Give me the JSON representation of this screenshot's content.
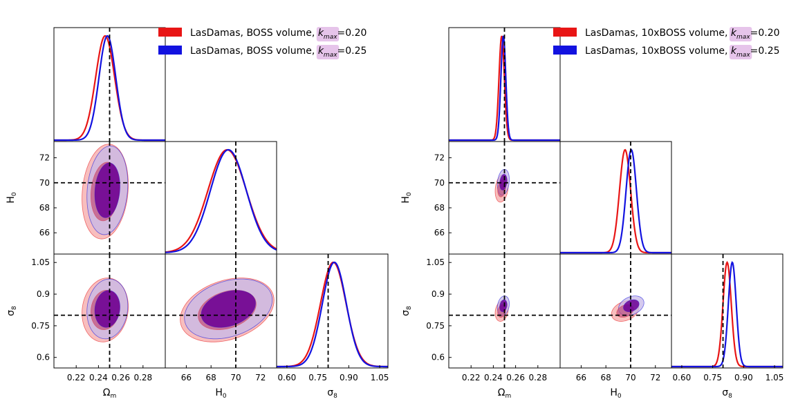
{
  "chart_data": [
    {
      "type": "corner",
      "params": [
        "Om",
        "H0",
        "s8"
      ],
      "axis_labels": {
        "Om": "Ω",
        "H0": "H",
        "s8": "σ"
      },
      "axis_label_subscripts": {
        "Om": "m",
        "H0": "0",
        "s8": "8"
      },
      "ranges": {
        "Om": [
          0.2,
          0.3
        ],
        "H0": [
          64.3,
          73.3
        ],
        "s8": [
          0.55,
          1.09
        ]
      },
      "ticks": {
        "Om": {
          "values": [
            0.22,
            0.24,
            0.26,
            0.28
          ],
          "labels": [
            "0.22",
            "0.24",
            "0.26",
            "0.28"
          ]
        },
        "H0": {
          "values": [
            66,
            68,
            70,
            72
          ],
          "labels": [
            "66",
            "68",
            "70",
            "72"
          ]
        },
        "s8": {
          "values": [
            0.6,
            0.75,
            0.9,
            1.05
          ],
          "labels": [
            "0.60",
            "0.75",
            "0.90",
            "1.05"
          ]
        }
      },
      "y_ticks": {
        "H0": {
          "values": [
            66,
            68,
            70,
            72
          ],
          "labels": [
            "66",
            "68",
            "70",
            "72"
          ]
        },
        "s8": {
          "values": [
            0.6,
            0.75,
            0.9,
            1.05
          ],
          "labels": [
            "0.6",
            "0.75",
            "0.9",
            "1.05"
          ]
        }
      },
      "truth": {
        "Om": 0.25,
        "H0": 70,
        "s8": 0.8
      },
      "series": [
        {
          "name_main": "LasDamas, BOSS volume, ",
          "name_k": "k",
          "name_k_sub": "max",
          "name_value": "=0.20",
          "color": "#e81515",
          "fill_outer": "#f6a8a8",
          "fill_inner": "#c0507a",
          "mean": {
            "Om": 0.246,
            "H0": 69.3,
            "s8": 0.825
          },
          "sd": {
            "Om": 0.0085,
            "H0": 1.55,
            "s8": 0.062
          },
          "rho": {
            "Om_H0": 0.15,
            "Om_s8": 0.1,
            "H0_s8": 0.3
          }
        },
        {
          "name_main": "LasDamas, BOSS volume, ",
          "name_k": "k",
          "name_k_sub": "max",
          "name_value": "=0.25",
          "color": "#1212e0",
          "fill_outer": "#c7b8e8",
          "fill_inner": "#6a0095",
          "mean": {
            "Om": 0.248,
            "H0": 69.4,
            "s8": 0.83
          },
          "sd": {
            "Om": 0.0075,
            "H0": 1.45,
            "s8": 0.058
          },
          "rho": {
            "Om_H0": 0.15,
            "Om_s8": 0.1,
            "H0_s8": 0.3
          }
        }
      ]
    },
    {
      "type": "corner",
      "params": [
        "Om",
        "H0",
        "s8"
      ],
      "axis_labels": {
        "Om": "Ω",
        "H0": "H",
        "s8": "σ"
      },
      "axis_label_subscripts": {
        "Om": "m",
        "H0": "0",
        "s8": "8"
      },
      "ranges": {
        "Om": [
          0.2,
          0.3
        ],
        "H0": [
          64.3,
          73.3
        ],
        "s8": [
          0.55,
          1.09
        ]
      },
      "ticks": {
        "Om": {
          "values": [
            0.22,
            0.24,
            0.26,
            0.28
          ],
          "labels": [
            "0.22",
            "0.24",
            "0.26",
            "0.28"
          ]
        },
        "H0": {
          "values": [
            66,
            68,
            70,
            72
          ],
          "labels": [
            "66",
            "68",
            "70",
            "72"
          ]
        },
        "s8": {
          "values": [
            0.6,
            0.75,
            0.9,
            1.05
          ],
          "labels": [
            "0.60",
            "0.75",
            "0.90",
            "1.05"
          ]
        }
      },
      "y_ticks": {
        "H0": {
          "values": [
            66,
            68,
            70,
            72
          ],
          "labels": [
            "66",
            "68",
            "70",
            "72"
          ]
        },
        "s8": {
          "values": [
            0.6,
            0.75,
            0.9,
            1.05
          ],
          "labels": [
            "0.6",
            "0.75",
            "0.9",
            "1.05"
          ]
        }
      },
      "truth": {
        "Om": 0.25,
        "H0": 70,
        "s8": 0.8
      },
      "series": [
        {
          "name_main": "LasDamas, 10xBOSS volume, ",
          "name_k": "k",
          "name_k_sub": "max",
          "name_value": "=0.20",
          "color": "#e81515",
          "fill_outer": "#f6a8a8",
          "fill_inner": "#c0507a",
          "mean": {
            "Om": 0.2475,
            "H0": 69.55,
            "s8": 0.82
          },
          "sd": {
            "Om": 0.0024,
            "H0": 0.45,
            "s8": 0.02
          },
          "rho": {
            "Om_H0": 0.2,
            "Om_s8": 0.2,
            "H0_s8": 0.3
          }
        },
        {
          "name_main": "LasDamas, 10xBOSS volume, ",
          "name_k": "k",
          "name_k_sub": "max",
          "name_value": "=0.25",
          "color": "#1212e0",
          "fill_outer": "#c7b8e8",
          "fill_inner": "#6a0095",
          "mean": {
            "Om": 0.249,
            "H0": 70.05,
            "s8": 0.845
          },
          "sd": {
            "Om": 0.0022,
            "H0": 0.42,
            "s8": 0.019
          },
          "rho": {
            "Om_H0": 0.2,
            "Om_s8": 0.2,
            "H0_s8": 0.3
          }
        }
      ]
    }
  ]
}
